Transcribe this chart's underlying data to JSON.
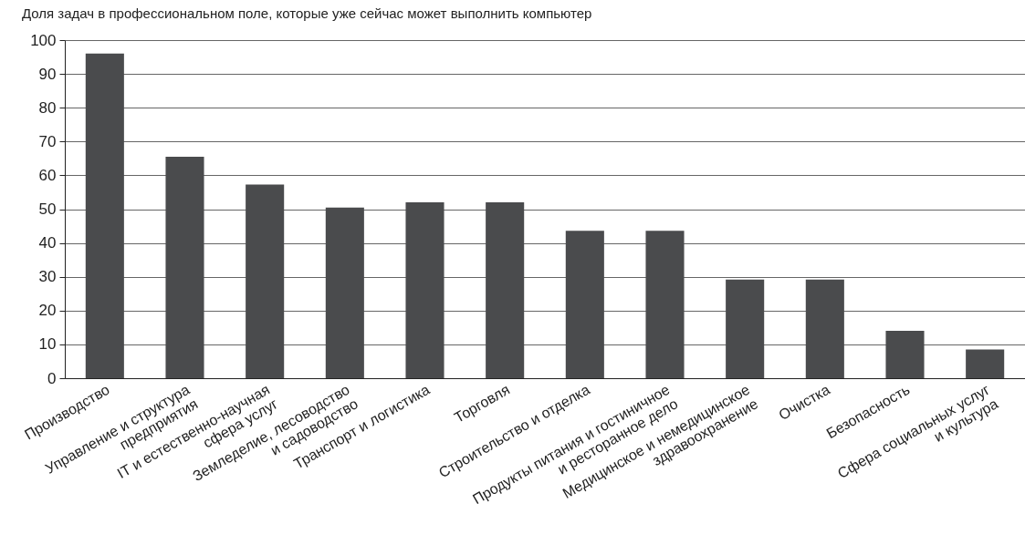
{
  "chart_data": {
    "type": "bar",
    "title": "Доля задач в профессиональном поле, которые уже сейчас может выполнить компьютер",
    "categories": [
      "Производство",
      "Управление и структура\nпредприятия",
      "IT и естественно-научная\nсфера услуг",
      "Земледелие, лесоводство\nи садоводство",
      "Транспорт и логистика",
      "Торговля",
      "Строительство и отделка",
      "Продукты питания и гостиничное\nи ресторанное дело",
      "Медицинское и немедицинское\nздравоохранение",
      "Очистка",
      "Безопасность",
      "Сфера социальных услуг\nи культура"
    ],
    "values": [
      96,
      65.5,
      57.3,
      50.5,
      52,
      52,
      43.6,
      43.6,
      29.2,
      29.2,
      14,
      8.5
    ],
    "color": "#4a4b4d",
    "ylim": [
      0,
      100
    ],
    "yticks": [
      0,
      10,
      20,
      30,
      40,
      50,
      60,
      70,
      80,
      90,
      100
    ],
    "grid": "y"
  }
}
